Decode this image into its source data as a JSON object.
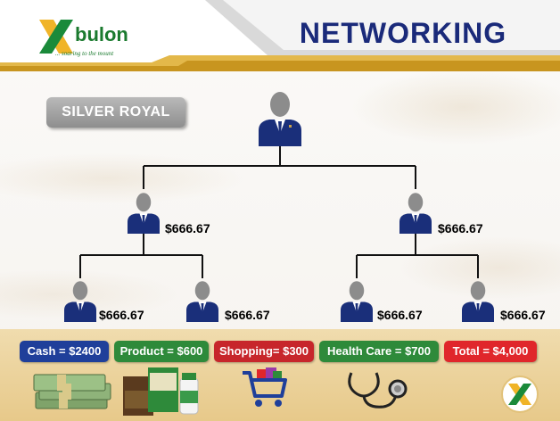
{
  "header": {
    "logo_text": "bulon",
    "logo_tagline": "... soaring to the mount",
    "title": "NETWORKING"
  },
  "plan": {
    "badge": "SILVER ROYAL"
  },
  "tree": {
    "level1": [
      {
        "amount": "$666.67"
      },
      {
        "amount": "$666.67"
      }
    ],
    "level2": [
      {
        "amount": "$666.67"
      },
      {
        "amount": "$666.67"
      },
      {
        "amount": "$666.67"
      },
      {
        "amount": "$666.67"
      }
    ]
  },
  "rewards": [
    {
      "label": "Cash = $2400",
      "color": "#1f3f9a",
      "icon": "cash-stack-icon"
    },
    {
      "label": "Product = $600",
      "color": "#2e8a3a",
      "icon": "product-box-icon"
    },
    {
      "label": "Shopping= $300",
      "color": "#c7262b",
      "icon": "shopping-cart-icon"
    },
    {
      "label": "Health Care = $700",
      "color": "#2e8a3a",
      "icon": "stethoscope-icon"
    },
    {
      "label": "Total =  $4,000",
      "color": "#e0262b",
      "icon": ""
    }
  ],
  "colors": {
    "brand_green": "#1a7a2e",
    "title_blue": "#1a2a7a",
    "suit_navy": "#1a2f7a",
    "gold": "#c9a24a"
  }
}
